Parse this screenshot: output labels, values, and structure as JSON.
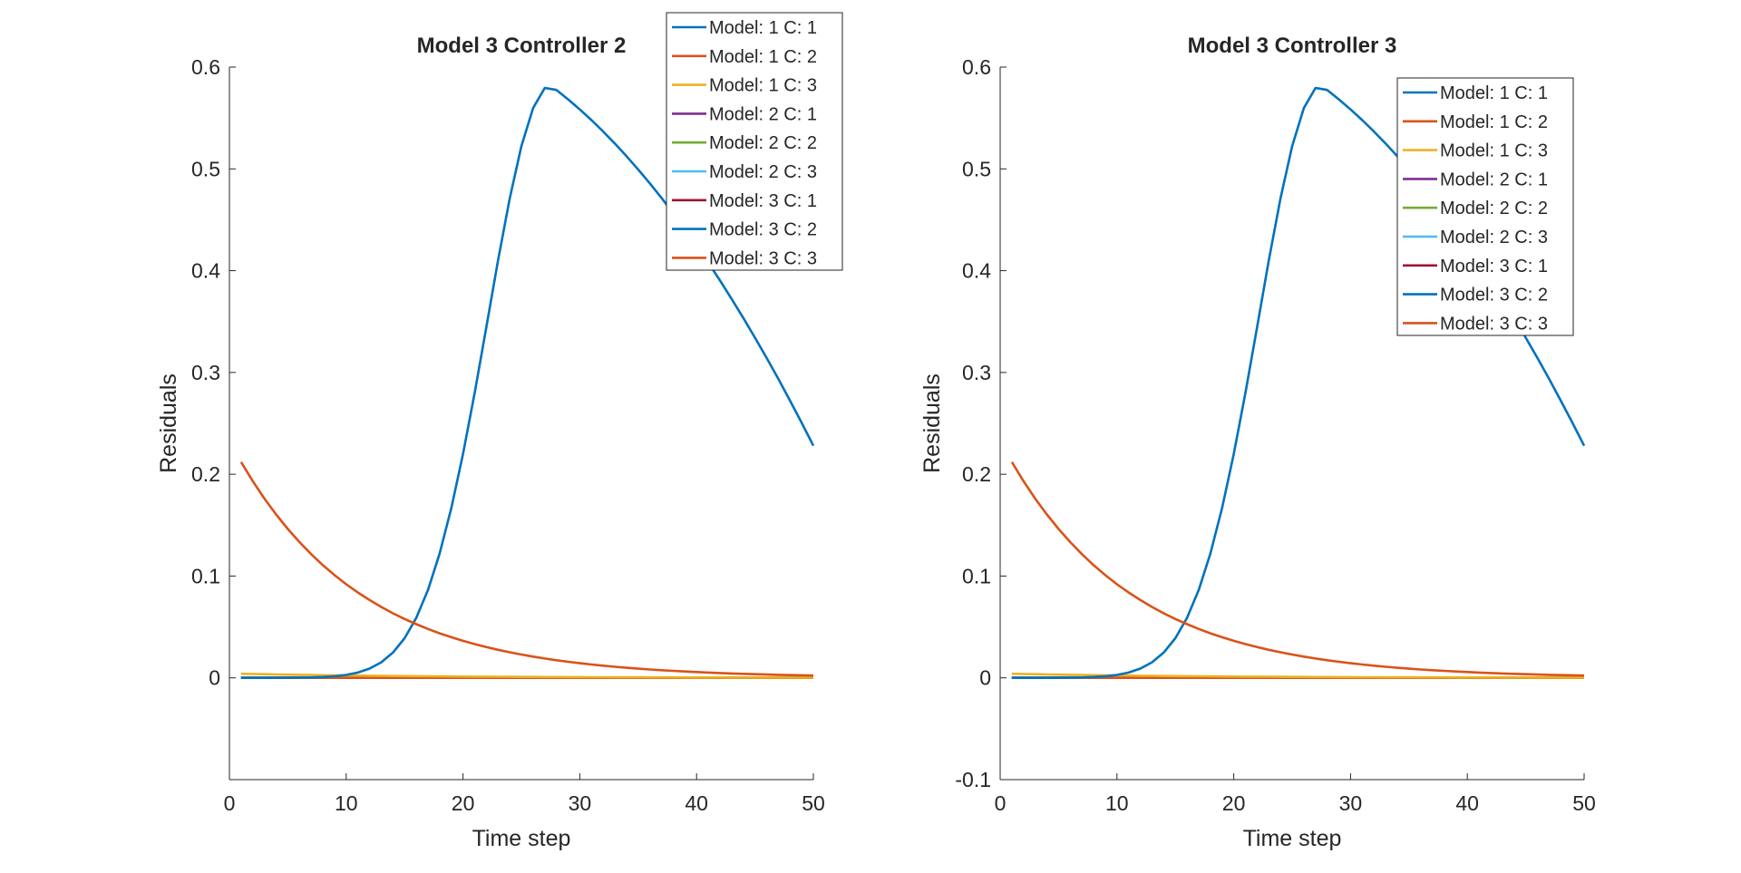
{
  "colors": {
    "c1": "#0072BD",
    "c2": "#D95319",
    "c3": "#EDB120",
    "c4": "#7E2F8E",
    "c5": "#77AC30",
    "c6": "#4DBEEE",
    "c7": "#A2142F",
    "axis": "#262626"
  },
  "chart_data": [
    {
      "type": "line",
      "title": "Model 3 Controller 2",
      "xlabel": "Time step",
      "ylabel": "Residuals",
      "xlim": [
        0,
        50
      ],
      "ylim": [
        -0.1,
        0.6
      ],
      "xticks": [
        "0",
        "10",
        "20",
        "30",
        "40",
        "50"
      ],
      "yticks": [
        "0",
        "0.1",
        "0.2",
        "0.3",
        "0.4",
        "0.5",
        "0.6"
      ],
      "grid": false,
      "legend_position": "top-right (overlapping title)",
      "series": [
        {
          "name": "Model: 1 C: 1",
          "shape": "bump",
          "amp": 0.582,
          "peak": 27.5,
          "width": 12.0,
          "end": 0.228
        },
        {
          "name": "Model: 1 C: 2",
          "shape": "decay",
          "start": 0.212,
          "rate": 0.0928
        },
        {
          "name": "Model: 1 C: 3",
          "shape": "decay",
          "start": 0.004,
          "rate": 0.06
        },
        {
          "name": "Model: 2 C: 1",
          "shape": "const",
          "value": 0
        },
        {
          "name": "Model: 2 C: 2",
          "shape": "const",
          "value": 0
        },
        {
          "name": "Model: 2 C: 3",
          "shape": "const",
          "value": 0
        },
        {
          "name": "Model: 3 C: 1",
          "shape": "const",
          "value": 0
        },
        {
          "name": "Model: 3 C: 2",
          "shape": "const",
          "value": 0
        },
        {
          "name": "Model: 3 C: 3",
          "shape": "const",
          "value": 0
        }
      ]
    },
    {
      "type": "line",
      "title": "Model 3 Controller 3",
      "xlabel": "Time step",
      "ylabel": "Residuals",
      "xlim": [
        0,
        50
      ],
      "ylim": [
        -0.1,
        0.6
      ],
      "xticks": [
        "0",
        "10",
        "20",
        "30",
        "40",
        "50"
      ],
      "yticks": [
        "-0.1",
        "0",
        "0.1",
        "0.2",
        "0.3",
        "0.4",
        "0.5",
        "0.6"
      ],
      "grid": false,
      "legend_position": "top-right",
      "series": [
        {
          "name": "Model: 1 C: 1",
          "shape": "bump",
          "amp": 0.582,
          "peak": 27.5,
          "width": 12.0,
          "end": 0.228
        },
        {
          "name": "Model: 1 C: 2",
          "shape": "decay",
          "start": 0.212,
          "rate": 0.0928
        },
        {
          "name": "Model: 1 C: 3",
          "shape": "decay",
          "start": 0.004,
          "rate": 0.06
        },
        {
          "name": "Model: 2 C: 1",
          "shape": "const",
          "value": 0
        },
        {
          "name": "Model: 2 C: 2",
          "shape": "const",
          "value": 0
        },
        {
          "name": "Model: 2 C: 3",
          "shape": "const",
          "value": 0
        },
        {
          "name": "Model: 3 C: 1",
          "shape": "const",
          "value": 0
        },
        {
          "name": "Model: 3 C: 2",
          "shape": "const",
          "value": 0
        },
        {
          "name": "Model: 3 C: 3",
          "shape": "const",
          "value": 0
        }
      ]
    }
  ]
}
